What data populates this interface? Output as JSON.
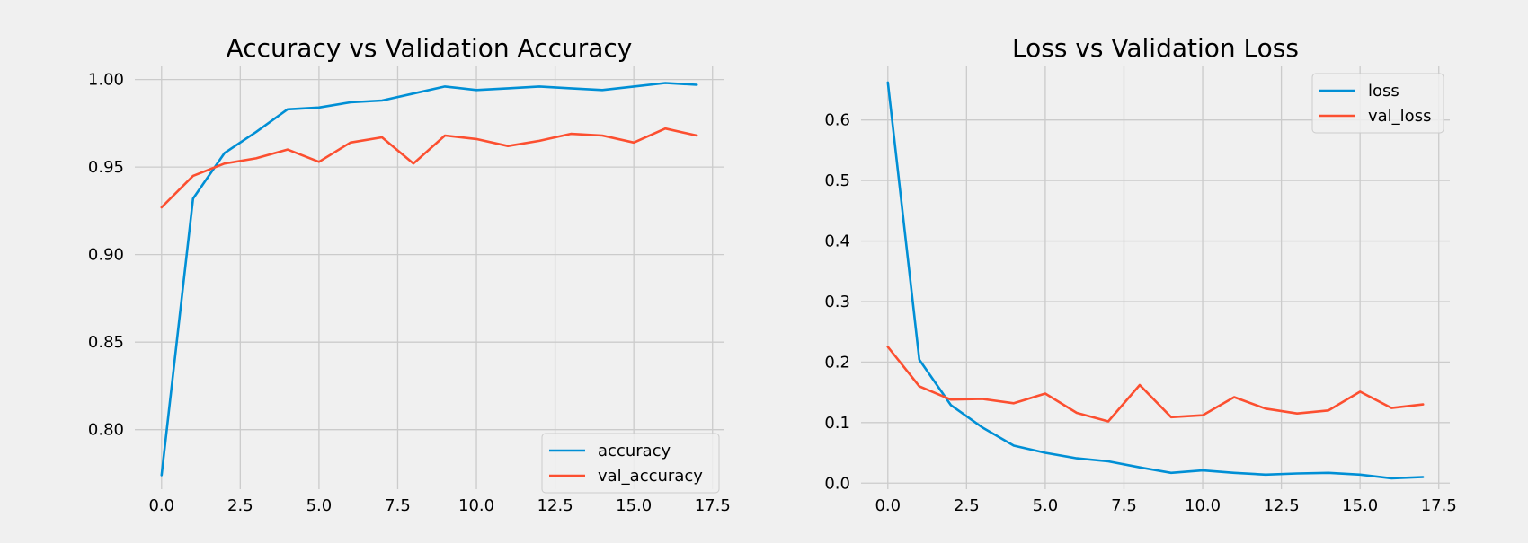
{
  "colors": {
    "background": "#f0f0f0",
    "grid": "#cbcbcb",
    "series_1": "#008fd5",
    "series_2": "#fc4f30"
  },
  "chart_data": [
    {
      "type": "line",
      "title": "Accuracy vs Validation Accuracy",
      "xlabel": "",
      "ylabel": "",
      "xlim": [
        -0.85,
        17.85
      ],
      "ylim": [
        0.766,
        1.008
      ],
      "xticks": [
        0.0,
        2.5,
        5.0,
        7.5,
        10.0,
        12.5,
        15.0,
        17.5
      ],
      "xtick_labels": [
        "0.0",
        "2.5",
        "5.0",
        "7.5",
        "10.0",
        "12.5",
        "15.0",
        "17.5"
      ],
      "yticks": [
        0.8,
        0.85,
        0.9,
        0.95,
        1.0
      ],
      "ytick_labels": [
        "0.80",
        "0.85",
        "0.90",
        "0.95",
        "1.00"
      ],
      "grid": true,
      "legend_position": "lower-right",
      "x": [
        0,
        1,
        2,
        3,
        4,
        5,
        6,
        7,
        8,
        9,
        10,
        11,
        12,
        13,
        14,
        15,
        16,
        17
      ],
      "series": [
        {
          "name": "accuracy",
          "color": "#008fd5",
          "values": [
            0.774,
            0.932,
            0.958,
            0.97,
            0.983,
            0.984,
            0.987,
            0.988,
            0.992,
            0.996,
            0.994,
            0.995,
            0.996,
            0.995,
            0.994,
            0.996,
            0.998,
            0.997
          ]
        },
        {
          "name": "val_accuracy",
          "color": "#fc4f30",
          "values": [
            0.927,
            0.945,
            0.952,
            0.955,
            0.96,
            0.953,
            0.964,
            0.967,
            0.952,
            0.968,
            0.966,
            0.962,
            0.965,
            0.969,
            0.968,
            0.964,
            0.972,
            0.968
          ]
        }
      ]
    },
    {
      "type": "line",
      "title": "Loss vs Validation Loss",
      "xlabel": "",
      "ylabel": "",
      "xlim": [
        -0.85,
        17.85
      ],
      "ylim": [
        -0.01,
        0.69
      ],
      "xticks": [
        0.0,
        2.5,
        5.0,
        7.5,
        10.0,
        12.5,
        15.0,
        17.5
      ],
      "xtick_labels": [
        "0.0",
        "2.5",
        "5.0",
        "7.5",
        "10.0",
        "12.5",
        "15.0",
        "17.5"
      ],
      "yticks": [
        0.0,
        0.1,
        0.2,
        0.3,
        0.4,
        0.5,
        0.6
      ],
      "ytick_labels": [
        "0.0",
        "0.1",
        "0.2",
        "0.3",
        "0.4",
        "0.5",
        "0.6"
      ],
      "grid": true,
      "legend_position": "upper-right",
      "x": [
        0,
        1,
        2,
        3,
        4,
        5,
        6,
        7,
        8,
        9,
        10,
        11,
        12,
        13,
        14,
        15,
        16,
        17
      ],
      "series": [
        {
          "name": "loss",
          "color": "#008fd5",
          "values": [
            0.662,
            0.204,
            0.129,
            0.092,
            0.062,
            0.05,
            0.041,
            0.036,
            0.026,
            0.017,
            0.021,
            0.017,
            0.014,
            0.016,
            0.017,
            0.014,
            0.008,
            0.01
          ]
        },
        {
          "name": "val_loss",
          "color": "#fc4f30",
          "values": [
            0.225,
            0.16,
            0.138,
            0.139,
            0.132,
            0.148,
            0.116,
            0.102,
            0.162,
            0.109,
            0.112,
            0.142,
            0.123,
            0.115,
            0.12,
            0.151,
            0.124,
            0.13
          ]
        }
      ]
    }
  ]
}
